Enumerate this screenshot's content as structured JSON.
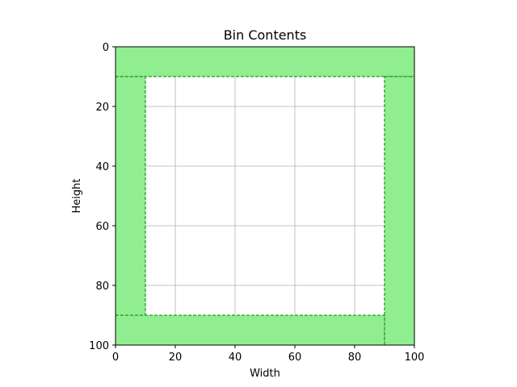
{
  "chart_data": {
    "type": "bar",
    "title": "Bin Contents",
    "xlabel": "Width",
    "ylabel": "Height",
    "xlim": [
      0,
      100
    ],
    "ylim": [
      100,
      0
    ],
    "x_ticks": [
      0,
      20,
      40,
      60,
      80,
      100
    ],
    "y_ticks": [
      0,
      20,
      40,
      60,
      80,
      100
    ],
    "grid": true,
    "items": [
      {
        "x": 0,
        "y": 0,
        "w": 100,
        "h": 10
      },
      {
        "x": 0,
        "y": 10,
        "w": 10,
        "h": 80
      },
      {
        "x": 90,
        "y": 10,
        "w": 10,
        "h": 90
      },
      {
        "x": 0,
        "y": 90,
        "w": 90,
        "h": 10
      }
    ],
    "fill_color": "#90ee90",
    "edge_color": "#008000"
  }
}
